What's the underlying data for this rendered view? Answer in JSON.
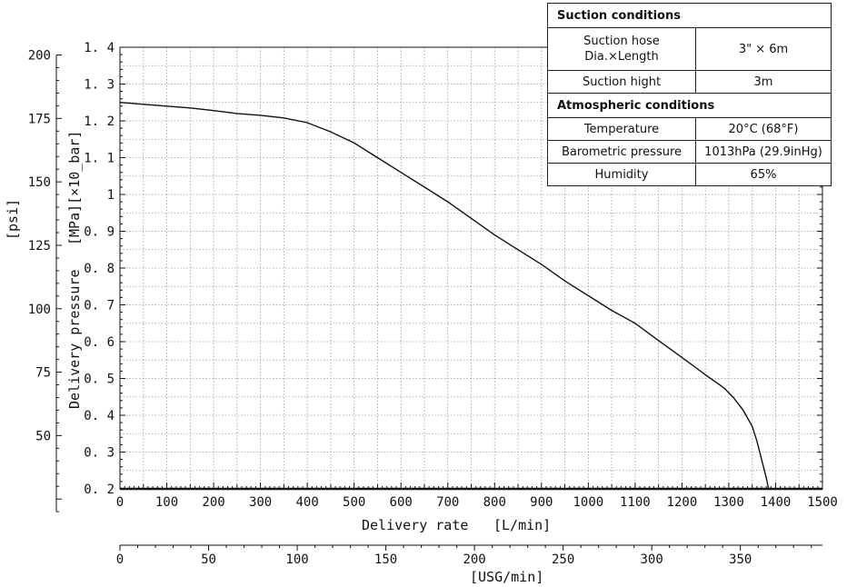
{
  "chart_data": {
    "type": "line",
    "x_axis": {
      "label_parts": [
        "Delivery rate",
        "[L/min]"
      ],
      "range": [
        0,
        1500
      ],
      "ticks": [
        0,
        100,
        200,
        300,
        400,
        500,
        600,
        700,
        800,
        900,
        1000,
        1100,
        1200,
        1300,
        1400,
        1500
      ],
      "tick_labels": [
        "0",
        "100",
        "200",
        "300",
        "400",
        "500",
        "600",
        "700",
        "800",
        "900",
        "1000",
        "1100",
        "1200",
        "1300",
        "1400",
        "1500"
      ]
    },
    "x2_axis": {
      "label": "[USG/min]",
      "ticks": [
        0,
        50,
        100,
        150,
        200,
        250,
        300,
        350
      ],
      "tick_labels": [
        "0",
        "50",
        "100",
        "150",
        "200",
        "250",
        "300",
        "350"
      ],
      "liters_per_unit": 3.785
    },
    "y_axis": {
      "label": "Delivery pressure",
      "unit_label": "[MPa][×10_bar]",
      "range": [
        0.2,
        1.4
      ],
      "ticks": [
        0.2,
        0.3,
        0.4,
        0.5,
        0.6,
        0.7,
        0.8,
        0.9,
        1.0,
        1.1,
        1.2,
        1.3,
        1.4
      ],
      "tick_labels": [
        "0. 2",
        "0. 3",
        "0. 4",
        "0. 5",
        "0. 6",
        "0. 7",
        "0. 8",
        "0. 9",
        "1",
        "1. 1",
        "1. 2",
        "1. 3",
        "1. 4"
      ]
    },
    "y2_axis": {
      "label": "[psi]",
      "ticks": [
        50,
        75,
        100,
        125,
        150,
        175,
        200
      ],
      "tick_labels": [
        "50",
        "75",
        "100",
        "125",
        "150",
        "175",
        "200"
      ],
      "mpa_per_unit": 0.0068948
    },
    "grid": true,
    "series": [
      {
        "x": [
          0,
          50,
          100,
          150,
          200,
          250,
          300,
          350,
          400,
          450,
          500,
          550,
          600,
          650,
          700,
          750,
          800,
          850,
          900,
          950,
          1000,
          1050,
          1100,
          1150,
          1200,
          1250,
          1290,
          1310,
          1330,
          1350,
          1360,
          1370,
          1380,
          1385
        ],
        "y": [
          1.25,
          1.245,
          1.24,
          1.235,
          1.228,
          1.22,
          1.215,
          1.208,
          1.195,
          1.17,
          1.14,
          1.1,
          1.06,
          1.02,
          0.98,
          0.935,
          0.89,
          0.85,
          0.81,
          0.765,
          0.725,
          0.685,
          0.65,
          0.603,
          0.557,
          0.51,
          0.474,
          0.448,
          0.415,
          0.37,
          0.33,
          0.28,
          0.23,
          0.2
        ]
      }
    ]
  },
  "conditions": {
    "suction_title": "Suction conditions",
    "suction_hose_label_l1": "Suction hose",
    "suction_hose_label_l2": "Dia.×Length",
    "suction_hose_value": "3\" × 6m",
    "suction_hight_label": "Suction hight",
    "suction_hight_value": "3m",
    "atmo_title": "Atmospheric conditions",
    "temperature_label": "Temperature",
    "temperature_value": "20°C (68°F)",
    "barometric_label": "Barometric pressure",
    "barometric_value": "1013hPa (29.9inHg)",
    "humidity_label": "Humidity",
    "humidity_value": "65%"
  }
}
